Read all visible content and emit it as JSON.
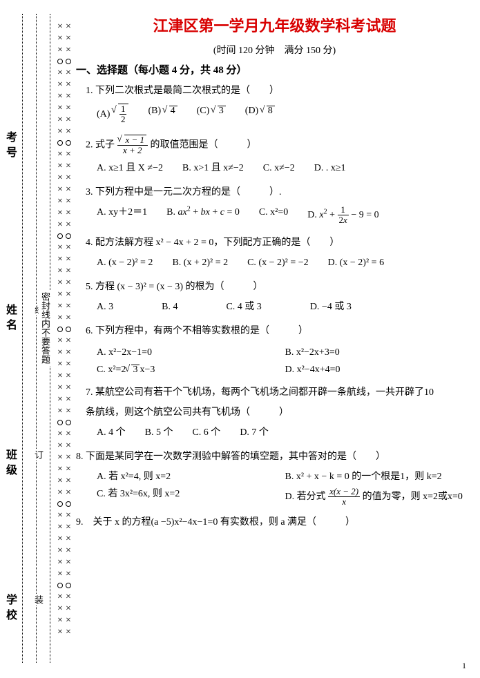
{
  "title": "江津区第一学月九年级数学科考试题",
  "subtitle": "(时间 120 分钟　满分 150 分)",
  "section1": "一、选择题（每小题 4 分，共 48 分）",
  "sidebar": {
    "labels": [
      "考号",
      "姓名",
      "班级",
      "学校"
    ],
    "dashchars": [
      "装",
      "订",
      "线"
    ],
    "warn": "密封线内不要答题"
  },
  "q1": {
    "stem": "1. 下列二次根式是最简二次根式的是（　　）",
    "optA_label": "(A)",
    "optB_label": "(B)",
    "optB_val": "4",
    "optC_label": "(C)",
    "optC_val": "3",
    "optD_label": "(D)",
    "optD_val": "8",
    "optA_num": "1",
    "optA_den": "2"
  },
  "q2": {
    "stem_pre": "2. 式子",
    "stem_post": "的取值范围是（　　　）",
    "num_inner": "x − 1",
    "den": "x + 2",
    "A": "A. x≥1 且 X ≠−2",
    "B": "B. x>1 且 x≠−2",
    "C": "C. x≠−2",
    "D": "D. . x≥1"
  },
  "q3": {
    "stem": "3. 下列方程中是一元二次方程的是（　　　）.",
    "A": "A. xy＋2＝1",
    "B_pre": "B. ",
    "C": "C. x²=0",
    "D_pre": "D. "
  },
  "q4": {
    "stem": "4. 配方法解方程 x² − 4x + 2 = 0，下列配方正确的是（　　）",
    "A": "A. (x − 2)² = 2",
    "B": "B. (x + 2)² = 2",
    "C": "C. (x − 2)² = −2",
    "D": "D. (x − 2)² = 6"
  },
  "q5": {
    "stem": "5. 方程 (x − 3)² = (x − 3) 的根为（　　　）",
    "A": "A. 3",
    "B": "B. 4",
    "C": "C. 4 或 3",
    "D": "D. −4 或 3"
  },
  "q6": {
    "stem": "6. 下列方程中，有两个不相等实数根的是（　　　）",
    "A": "A. x²−2x−1=0",
    "B": "B. x²−2x+3=0",
    "C_pre": "C. x²=2",
    "C_rad": "3",
    "C_post": "x−3",
    "D": "D. x²−4x+4=0"
  },
  "q7": {
    "stem1": "7. 某航空公司有若干个飞机场，每两个飞机场之间都开辟一条航线，一共开辟了10",
    "stem2": "条航线，则这个航空公司共有飞机场（　　　）",
    "A": "A. 4 个",
    "B": "B. 5 个",
    "C": "C. 6 个",
    "D": "D. 7 个"
  },
  "q8": {
    "stem": "8. 下面是某同学在一次数学测验中解答的填空题，其中答对的是（　　）",
    "A": "A. 若 x²=4, 则 x=2",
    "B": "B. x² + x − k = 0 的一个根是1，则 k=2",
    "C": "C. 若 3x²=6x, 则 x=2",
    "D_pre": "D. 若分式",
    "D_num": "x(x − 2)",
    "D_den": "x",
    "D_post": "的值为零，则 x=2或x=0"
  },
  "q9": {
    "stem": "9.　关于 x 的方程(a −5)x²−4x−1=0 有实数根，则 a 满足（　　　）"
  },
  "pagenum": "1",
  "colors": {
    "title": "#d80000",
    "text": "#000000",
    "bg": "#ffffff"
  }
}
